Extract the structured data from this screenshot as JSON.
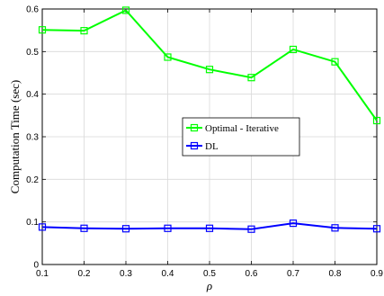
{
  "chart_data": {
    "type": "line",
    "x": [
      0.1,
      0.2,
      0.3,
      0.4,
      0.5,
      0.6,
      0.7,
      0.8,
      0.9
    ],
    "series": [
      {
        "name": "Optimal - Iterative",
        "color": "#00ff00",
        "marker": "square",
        "values": [
          0.551,
          0.549,
          0.597,
          0.487,
          0.458,
          0.439,
          0.505,
          0.476,
          0.338
        ]
      },
      {
        "name": "DL",
        "color": "#0000ff",
        "marker": "square",
        "values": [
          0.088,
          0.085,
          0.084,
          0.085,
          0.085,
          0.083,
          0.097,
          0.086,
          0.084
        ]
      }
    ],
    "xlabel": "ρ",
    "ylabel": "Computation Time (sec)",
    "xlim": [
      0.1,
      0.9
    ],
    "ylim": [
      0,
      0.6
    ],
    "xticks": [
      "0.1",
      "0.2",
      "0.3",
      "0.4",
      "0.5",
      "0.6",
      "0.7",
      "0.8",
      "0.9"
    ],
    "yticks": [
      "0",
      "0.1",
      "0.2",
      "0.3",
      "0.4",
      "0.5",
      "0.6"
    ],
    "grid": true,
    "legend_position": "center-right"
  }
}
